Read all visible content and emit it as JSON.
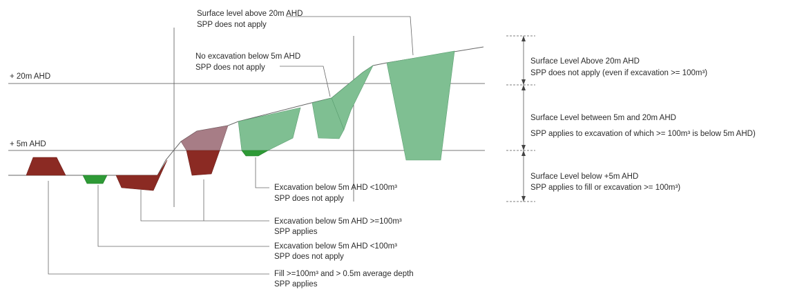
{
  "levels": {
    "ahd20": "+ 20m AHD",
    "ahd5": "+ 5m AHD"
  },
  "annotations": {
    "top_surface_20": {
      "line1": "Surface level above 20m AHD",
      "line2": "SPP does not apply"
    },
    "no_excavation": {
      "line1": "No excavation below 5m AHD",
      "line2": "SPP does not apply"
    },
    "exc_lt100_right": {
      "line1": "Excavation below 5m AHD <100m³",
      "line2": "SPP does not apply"
    },
    "exc_ge100": {
      "line1": "Excavation below 5m AHD >=100m³",
      "line2": "SPP applies"
    },
    "exc_lt100_left": {
      "line1": "Excavation below 5m AHD <100m³",
      "line2": "SPP does not apply"
    },
    "fill": {
      "line1": "Fill >=100m³ and > 0.5m average depth",
      "line2": "SPP applies"
    }
  },
  "zones": {
    "above20": {
      "line1": "Surface Level Above 20m AHD",
      "line2": "SPP does not apply (even if excavation >= 100m³)"
    },
    "between": {
      "line1": "Surface Level between 5m and 20m AHD",
      "line2": "SPP applies to excavation of which >= 100m³ is below 5m AHD)"
    },
    "below5": {
      "line1": "Surface Level below +5m AHD",
      "line2": "SPP applies to fill or excavation >= 100m³)"
    }
  },
  "colors": {
    "dark_red": "#8b2a23",
    "mauve": "#a77d86",
    "bright_green": "#2e9a36",
    "light_green": "#7fbf92"
  }
}
